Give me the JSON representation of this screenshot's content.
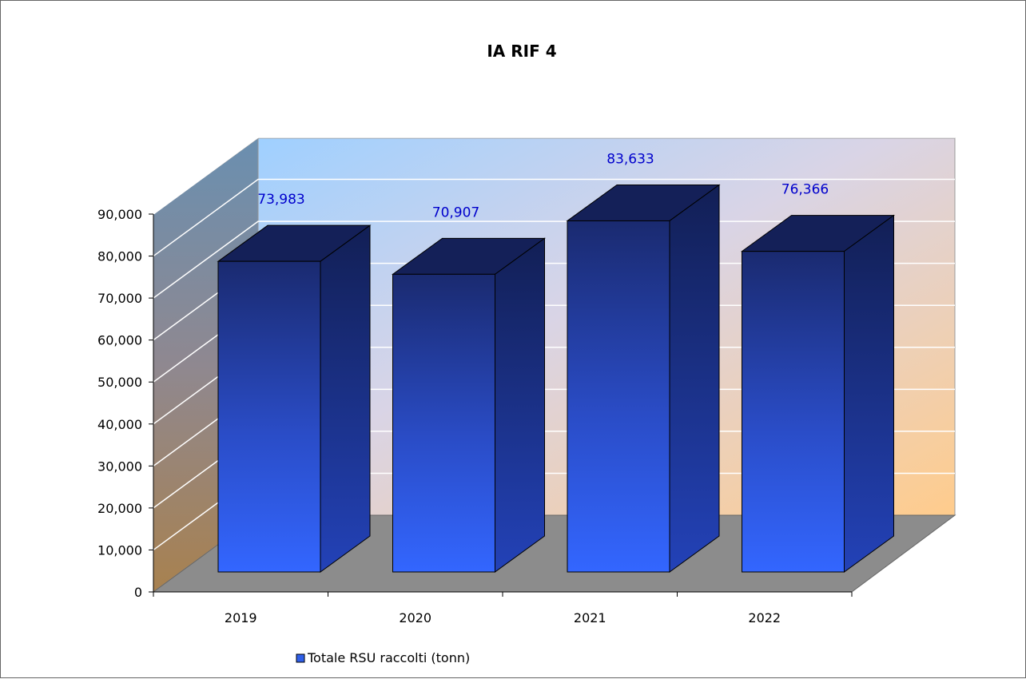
{
  "chart_data": {
    "type": "bar",
    "title": "IA RIF 4",
    "xlabel": "",
    "ylabel": "",
    "categories": [
      "2019",
      "2020",
      "2021",
      "2022"
    ],
    "series": [
      {
        "name": "Totale RSU raccolti (tonn)",
        "values": [
          73983,
          70907,
          83633,
          76366
        ],
        "data_labels": [
          "73,983",
          "70,907",
          "83,633",
          "76,366"
        ],
        "color": "#2f5fe8"
      }
    ],
    "ylim": [
      0,
      90000
    ],
    "yticks": [
      "0",
      "10,000",
      "20,000",
      "30,000",
      "40,000",
      "50,000",
      "60,000",
      "70,000",
      "80,000",
      "90,000"
    ],
    "grid": true,
    "style": "3d",
    "legend_position": "bottom-left",
    "colors": {
      "data_label": "#0000cc",
      "floor": "#8c8c8c",
      "bar_front_top": "#1a2a70",
      "bar_front_bottom": "#3366ff",
      "bar_side": "#1f3a9a",
      "bar_top": "#142058"
    }
  }
}
